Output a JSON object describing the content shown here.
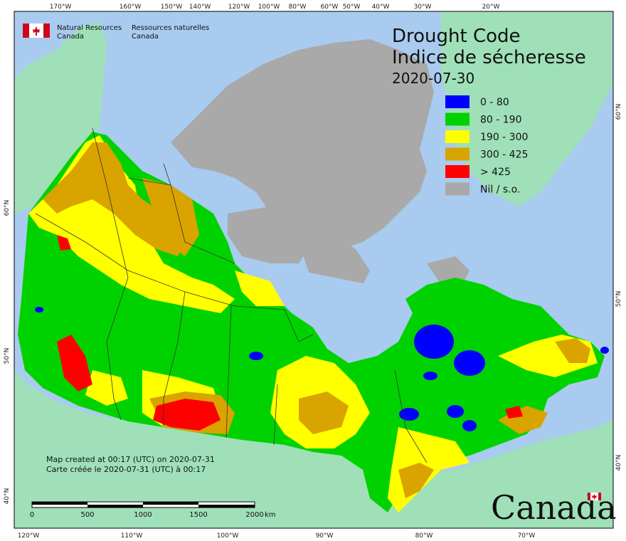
{
  "map": {
    "title_en": "Drought Code",
    "title_fr": "Indice de sécheresse",
    "date": "2020-07-30",
    "agency": {
      "en_line1": "Natural Resources",
      "en_line2": "Canada",
      "fr_line1": "Ressources naturelles",
      "fr_line2": "Canada"
    },
    "legend": [
      {
        "label": "0 - 80",
        "color": "#0000ff"
      },
      {
        "label": "80 - 190",
        "color": "#00d200"
      },
      {
        "label": "190 - 300",
        "color": "#ffff00"
      },
      {
        "label": "300 - 425",
        "color": "#d9a300"
      },
      {
        "label": "> 425",
        "color": "#ff0000"
      },
      {
        "label": "Nil / s.o.",
        "color": "#a9a9a9"
      }
    ],
    "credit_en": "Map created at 00:17 (UTC) on 2020-07-31",
    "credit_fr": "Carte créée le 2020-07-31 (UTC) à 00:17",
    "scale_ticks": [
      "0",
      "500",
      "1000",
      "1500",
      "2000"
    ],
    "scale_unit": "km",
    "wordmark": "Canada",
    "top_ticks": [
      "170°W",
      "160°W",
      "150°W",
      "140°W",
      "120°W",
      "100°W",
      "80°W",
      "60°W",
      "50°W",
      "40°W",
      "30°W",
      "20°W"
    ],
    "bottom_ticks": [
      "120°W",
      "110°W",
      "100°W",
      "90°W",
      "80°W",
      "70°W"
    ],
    "left_ticks": [
      "60°N",
      "50°N",
      "40°N"
    ],
    "right_ticks": [
      "60°N",
      "50°N",
      "40°N"
    ],
    "colors": {
      "ocean": "#a9cbef",
      "foreign_land": "#9fe0b8",
      "no_data": "#a9a9a9",
      "border": "#333333"
    }
  }
}
